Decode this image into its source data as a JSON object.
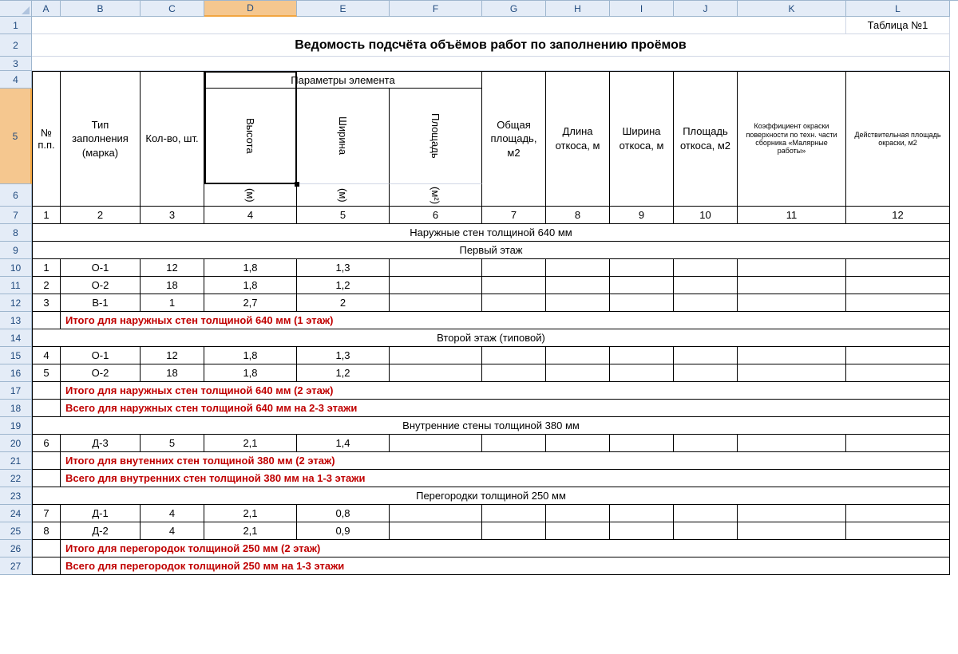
{
  "table_label": "Таблица №1",
  "title": "Ведомость подсчёта объёмов работ по заполнению проёмов",
  "columns": {
    "letters": [
      "A",
      "B",
      "C",
      "D",
      "E",
      "F",
      "G",
      "H",
      "I",
      "J",
      "K",
      "L"
    ],
    "widths": [
      36,
      100,
      80,
      116,
      116,
      116,
      80,
      80,
      80,
      80,
      136,
      130
    ],
    "selected_index": 3
  },
  "row_span": {
    "first": 1,
    "last": 27
  },
  "header_row_heights": {
    "r1": 22,
    "r2": 28,
    "r3": 18,
    "r4": 22,
    "r5": 120,
    "r6": 28
  },
  "header": {
    "params_group": "Параметры элемента",
    "pp": "№ п.п.",
    "type": "Тип заполнения (марка)",
    "qty": "Кол-во, шт.",
    "height": "Высота",
    "width_p": "Ширина",
    "area_p": "Площадь",
    "unit_m": "(м)",
    "unit_m2": "(м²)",
    "total_area": "Общая площадь, м2",
    "slope_len": "Длина откоса, м",
    "slope_wid": "Ширина откоса, м",
    "slope_area": "Площадь откоса, м2",
    "coef": "Коэффициент окраски поверхности по техн. части сборника «Малярные работы»",
    "real_area": "Действительная площадь окраски, м2"
  },
  "col_index_row": [
    "1",
    "2",
    "3",
    "4",
    "5",
    "6",
    "7",
    "8",
    "9",
    "10",
    "11",
    "12"
  ],
  "sections": {
    "s1": "Наружные стен толщиной 640  мм",
    "s2": "Первый этаж",
    "s3": "Итого для наружных стен толщиной 640 мм (1 этаж)",
    "s4": "Второй этаж (типовой)",
    "s5": "Итого для наружных стен толщиной 640 мм (2 этаж)",
    "s6": "Всего для наружных стен толщиной 640 мм на 2-3 этажи",
    "s7": "Внутренние стены толщиной 380 мм",
    "s8": "Итого для внутенних стен толщиной 380 мм (2 этаж)",
    "s9": "Всего для внутренних стен толщиной 380 мм на 1-3 этажи",
    "s10": "Перегородки толщиной 250 мм",
    "s11": "Итого для перегородок толщиной 250 мм (2 этаж)",
    "s12": "Всего для перегородок толщиной 250 мм на 1-3 этажи"
  },
  "data_rows": {
    "r10": {
      "n": "1",
      "type": "О-1",
      "qty": "12",
      "h": "1,8",
      "w": "1,3"
    },
    "r11": {
      "n": "2",
      "type": "О-2",
      "qty": "18",
      "h": "1,8",
      "w": "1,2"
    },
    "r12": {
      "n": "3",
      "type": "В-1",
      "qty": "1",
      "h": "2,7",
      "w": "2"
    },
    "r15": {
      "n": "4",
      "type": "О-1",
      "qty": "12",
      "h": "1,8",
      "w": "1,3"
    },
    "r16": {
      "n": "5",
      "type": "О-2",
      "qty": "18",
      "h": "1,8",
      "w": "1,2"
    },
    "r20": {
      "n": "6",
      "type": "Д-3",
      "qty": "5",
      "h": "2,1",
      "w": "1,4"
    },
    "r24": {
      "n": "7",
      "type": "Д-1",
      "qty": "4",
      "h": "2,1",
      "w": "0,8"
    },
    "r25": {
      "n": "8",
      "type": "Д-2",
      "qty": "4",
      "h": "2,1",
      "w": "0,9"
    }
  },
  "colors": {
    "header_bg": "#e4ecf7",
    "header_border": "#9eb6ce",
    "grid_line": "#d0d7e5",
    "sel_bg": "#f5c78f",
    "sel_border": "#f2a640",
    "text_header": "#1f497d",
    "red": "#c00000"
  },
  "active_cell": {
    "col": "D",
    "rows": "4-6"
  }
}
